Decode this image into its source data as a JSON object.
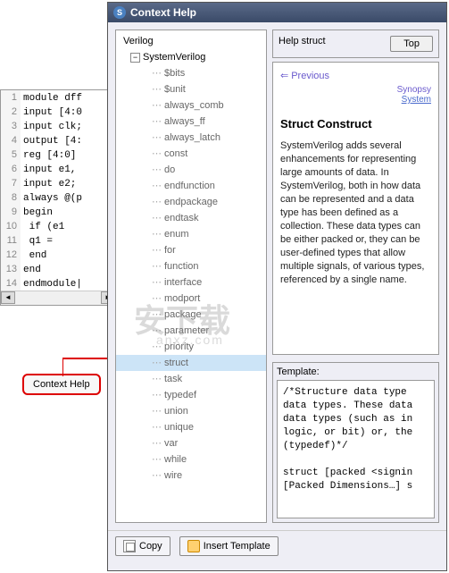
{
  "editor": {
    "lines": [
      {
        "n": 1,
        "code": "module dff"
      },
      {
        "n": 2,
        "code": "input [4:0"
      },
      {
        "n": 3,
        "code": "input clk;"
      },
      {
        "n": 4,
        "code": "output [4:"
      },
      {
        "n": 5,
        "code": "reg [4:0]"
      },
      {
        "n": 6,
        "code": "input e1,"
      },
      {
        "n": 7,
        "code": "input e2;"
      },
      {
        "n": 8,
        "code": "always @(p"
      },
      {
        "n": 9,
        "code": "begin"
      },
      {
        "n": 10,
        "code": "    if (e1"
      },
      {
        "n": 11,
        "code": "      q1 ="
      },
      {
        "n": 12,
        "code": "    end"
      },
      {
        "n": 13,
        "code": "end"
      },
      {
        "n": 14,
        "code": "endmodule|"
      }
    ]
  },
  "context_help_btn": "Context Help",
  "help_window": {
    "title": "Context Help",
    "tree": {
      "root": "Verilog",
      "category": "SystemVerilog",
      "items": [
        "$bits",
        "$unit",
        "always_comb",
        "always_ff",
        "always_latch",
        "const",
        "do",
        "endfunction",
        "endpackage",
        "endtask",
        "enum",
        "for",
        "function",
        "interface",
        "modport",
        "package",
        "parameter",
        "priority",
        "struct",
        "task",
        "typedef",
        "union",
        "unique",
        "var",
        "while",
        "wire"
      ],
      "selected": "struct"
    },
    "right": {
      "group_label": "Help struct",
      "top_btn": "Top",
      "prev": "Previous",
      "vendor1": "Synopsy",
      "vendor2": "System",
      "title": "Struct Construct",
      "para": "SystemVerilog adds several enhancements for representing large amounts of data. In SystemVerilog, both in how data can be represented and a data type has been defined as a collection. These data types can be either packed or, they can be user-defined types that allow multiple signals, of various types, referenced by a single name.",
      "template_label": "Template:",
      "template_code": "/*Structure data type \ndata types. These data\ndata types (such as in\nlogic, or bit) or, the\n(typedef)*/\n\nstruct [packed <signin\n[Packed Dimensions…] s\n\n\n//examples:"
    },
    "buttons": {
      "copy": "Copy",
      "insert": "Insert Template"
    }
  },
  "colors": {
    "titlebar_top": "#5a6a88",
    "titlebar_bottom": "#3a4a68",
    "panel_bg": "#eeeef5",
    "selected_bg": "#cce4f7",
    "arrow": "#d00000",
    "link": "#6a5acd"
  }
}
